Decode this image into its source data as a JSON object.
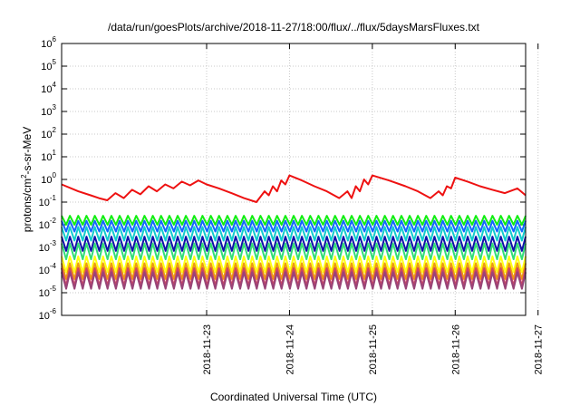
{
  "chart_data": {
    "type": "line",
    "title": "/data/run/goesPlots/archive/2018-11-27/18:00/flux/../flux/5daysMarsFluxes.txt",
    "xlabel": "Coordinated Universal Time (UTC)",
    "ylabel": "protons/cm²-s-sr-MeV",
    "ylabel_parts": {
      "base": "protons/cm",
      "sup": "2",
      "tail": "-s-sr-MeV"
    },
    "xlim": [
      -1.75,
      3.85
    ],
    "xlim_note": "days relative to 2018-11-23 00:00 UTC",
    "x_ticks": [
      {
        "x": 0,
        "label": "2018-11-23"
      },
      {
        "x": 1,
        "label": "2018-11-24"
      },
      {
        "x": 2,
        "label": "2018-11-25"
      },
      {
        "x": 3,
        "label": "2018-11-26"
      },
      {
        "x": 4,
        "label": "2018-11-27"
      }
    ],
    "y_scale": "log",
    "ylim": [
      1e-06,
      1000000.0
    ],
    "y_ticks": [
      {
        "exp": 6,
        "base": "10",
        "sup": "6"
      },
      {
        "exp": 5,
        "base": "10",
        "sup": "5"
      },
      {
        "exp": 4,
        "base": "10",
        "sup": "4"
      },
      {
        "exp": 3,
        "base": "10",
        "sup": "3"
      },
      {
        "exp": 2,
        "base": "10",
        "sup": "2"
      },
      {
        "exp": 1,
        "base": "10",
        "sup": "1"
      },
      {
        "exp": 0,
        "base": "10",
        "sup": "0"
      },
      {
        "exp": -1,
        "base": "10",
        "sup": "-1"
      },
      {
        "exp": -2,
        "base": "10",
        "sup": "-2"
      },
      {
        "exp": -3,
        "base": "10",
        "sup": "-3"
      },
      {
        "exp": -4,
        "base": "10",
        "sup": "-4"
      },
      {
        "exp": -5,
        "base": "10",
        "sup": "-5"
      },
      {
        "exp": -6,
        "base": "10",
        "sup": "-6"
      }
    ],
    "grid": true,
    "series": [
      {
        "color": "#ee1111",
        "x": [
          -1.75,
          -1.55,
          -1.4,
          -1.3,
          -1.2,
          -1.1,
          -1.0,
          -0.9,
          -0.8,
          -0.7,
          -0.6,
          -0.5,
          -0.4,
          -0.3,
          -0.2,
          -0.1,
          0.0,
          0.15,
          0.3,
          0.45,
          0.6,
          0.7,
          0.75,
          0.8,
          0.85,
          0.9,
          0.95,
          1.0,
          1.15,
          1.3,
          1.45,
          1.6,
          1.7,
          1.75,
          1.8,
          1.85,
          1.9,
          1.95,
          2.0,
          2.2,
          2.4,
          2.55,
          2.7,
          2.8,
          2.85,
          2.9,
          2.95,
          3.0,
          3.15,
          3.3,
          3.45,
          3.6,
          3.75,
          3.85
        ],
        "y": [
          0.6,
          0.3,
          0.2,
          0.15,
          0.12,
          0.25,
          0.15,
          0.35,
          0.22,
          0.5,
          0.3,
          0.6,
          0.4,
          0.8,
          0.55,
          0.9,
          0.6,
          0.4,
          0.25,
          0.15,
          0.1,
          0.3,
          0.2,
          0.5,
          0.3,
          0.9,
          0.6,
          1.5,
          0.9,
          0.5,
          0.3,
          0.15,
          0.3,
          0.15,
          0.5,
          0.3,
          1.0,
          0.6,
          1.5,
          0.9,
          0.5,
          0.3,
          0.15,
          0.3,
          0.2,
          0.5,
          0.4,
          1.2,
          0.8,
          0.5,
          0.35,
          0.25,
          0.4,
          0.2
        ]
      },
      {
        "color": "#11ee11",
        "base": 0.025,
        "dip": 0.01
      },
      {
        "color": "#1166ff",
        "base": 0.015,
        "dip": 0.005
      },
      {
        "color": "#11cccc",
        "base": 0.008,
        "dip": 0.002
      },
      {
        "color": "#1111aa",
        "base": 0.003,
        "dip": 0.0007
      },
      {
        "color": "#33dd77",
        "base": 0.0015,
        "dip": 0.0003
      },
      {
        "color": "#ffff11",
        "base": 0.0004,
        "dip": 8e-05
      },
      {
        "color": "#ee9911",
        "base": 0.0002,
        "dip": 4e-05
      },
      {
        "color": "#cc4466",
        "base": 0.00012,
        "dip": 2e-05
      },
      {
        "color": "#994477",
        "base": 8e-05,
        "dip": 1.5e-05
      }
    ]
  }
}
